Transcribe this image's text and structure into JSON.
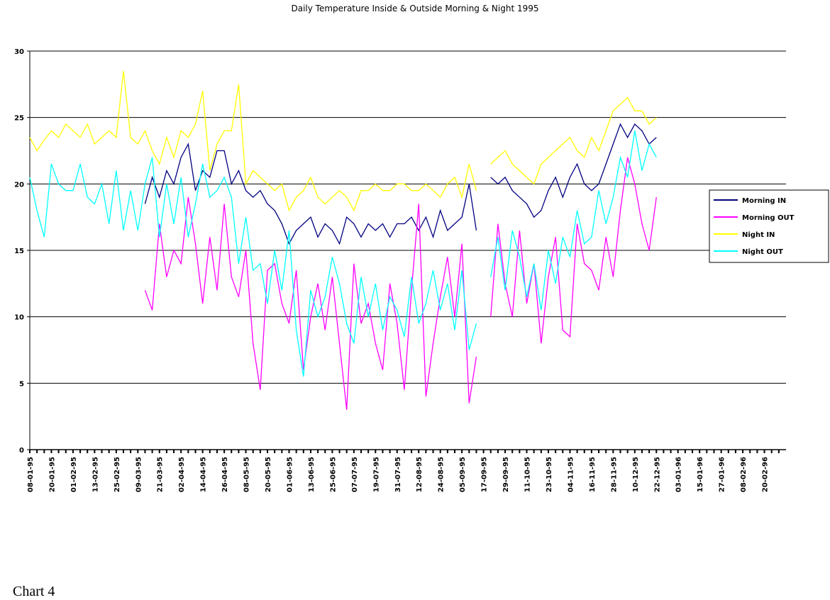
{
  "chart_data": {
    "type": "line",
    "title": "Daily Temperature  Inside & Outside   Morning & Night 1995",
    "note": "Chart 4",
    "categories": [
      "08-01-95",
      null,
      null,
      "20-01-95",
      null,
      null,
      "01-02-95",
      null,
      null,
      "13-02-95",
      null,
      null,
      "25-02-95",
      null,
      null,
      "09-03-95",
      null,
      null,
      "21-03-95",
      null,
      null,
      "02-04-95",
      null,
      null,
      "14-04-95",
      null,
      null,
      "26-04-95",
      null,
      null,
      "08-05-95",
      null,
      null,
      "20-05-95",
      null,
      null,
      "01-06-95",
      null,
      null,
      "13-06-95",
      null,
      null,
      "25-06-95",
      null,
      null,
      "07-07-95",
      null,
      null,
      "19-07-95",
      null,
      null,
      "31-07-95",
      null,
      null,
      "12-08-95",
      null,
      null,
      "24-08-95",
      null,
      null,
      "05-09-95",
      null,
      null,
      "17-09-95",
      null,
      null,
      "29-09-95",
      null,
      null,
      "11-10-95",
      null,
      null,
      "23-10-95",
      null,
      null,
      "04-11-95",
      null,
      null,
      "16-11-95",
      null,
      null,
      "28-11-95",
      null,
      null,
      "10-12-95",
      null,
      null,
      "22-12-95",
      null,
      null,
      "03-01-96",
      null,
      null,
      "15-01-96",
      null,
      null,
      "27-01-96",
      null,
      null,
      "08-02-96",
      null,
      null,
      "20-02-96",
      null,
      null
    ],
    "series": [
      {
        "name": "Morning IN",
        "color": "#000080",
        "values": [
          null,
          null,
          null,
          null,
          null,
          null,
          null,
          null,
          null,
          null,
          null,
          null,
          null,
          null,
          null,
          null,
          18.5,
          20.5,
          19,
          21,
          20,
          22,
          23,
          19.5,
          21,
          20.5,
          22.5,
          22.5,
          20,
          21,
          19.5,
          19,
          19.5,
          18.5,
          18,
          17,
          15.5,
          16.5,
          17,
          17.5,
          16,
          17,
          16.5,
          15.5,
          17.5,
          17,
          16,
          17,
          16.5,
          17,
          16,
          17,
          17,
          17.5,
          16.5,
          17.5,
          16,
          18,
          16.5,
          17,
          17.5,
          20,
          16.5,
          null,
          20.5,
          20,
          20.5,
          19.5,
          19,
          18.5,
          17.5,
          18,
          19.5,
          20.5,
          19,
          20.5,
          21.5,
          20,
          19.5,
          20,
          21.5,
          23,
          24.5,
          23.5,
          24.5,
          24,
          23,
          23.5,
          null,
          null,
          null,
          null,
          null,
          null,
          null,
          null,
          null,
          null,
          null,
          null,
          null,
          null,
          null,
          null,
          null
        ]
      },
      {
        "name": "Morning OUT",
        "color": "#ff00ff",
        "values": [
          null,
          null,
          null,
          null,
          null,
          null,
          null,
          null,
          null,
          null,
          null,
          null,
          null,
          null,
          null,
          null,
          12,
          10.5,
          17,
          13,
          15,
          14,
          19,
          15.5,
          11,
          16,
          12,
          18.5,
          13,
          11.5,
          15,
          8,
          4.5,
          13.5,
          14,
          11,
          9.5,
          13.5,
          6,
          10,
          12.5,
          9,
          13,
          8,
          3,
          14,
          9.5,
          11,
          8,
          6,
          12.5,
          9.5,
          4.5,
          12,
          18.5,
          4,
          8,
          11.5,
          14.5,
          10,
          15.5,
          3.5,
          7,
          null,
          10,
          17,
          12.5,
          10,
          16.5,
          11,
          14,
          8,
          13,
          16,
          9,
          8.5,
          17,
          14,
          13.5,
          12,
          16,
          13,
          18,
          22,
          20,
          17,
          15,
          19,
          null,
          null,
          null,
          null,
          null,
          null,
          null,
          null,
          null,
          null,
          null,
          null,
          null,
          null,
          null,
          null,
          null
        ]
      },
      {
        "name": "Night IN",
        "color": "#ffff00",
        "values": [
          23.5,
          22.5,
          23.3,
          24,
          23.5,
          24.5,
          24,
          23.5,
          24.5,
          23,
          23.5,
          24,
          23.5,
          28.5,
          23.5,
          23,
          24,
          22.5,
          21.5,
          23.5,
          22,
          24,
          23.5,
          24.5,
          27,
          21,
          23,
          24,
          24,
          27.5,
          20,
          21,
          20.5,
          20,
          19.5,
          20,
          18,
          19,
          19.5,
          20.5,
          19,
          18.5,
          19,
          19.5,
          19,
          18,
          19.5,
          19.5,
          20,
          19.5,
          19.5,
          20,
          20,
          19.5,
          19.5,
          20,
          19.5,
          19,
          20,
          20.5,
          19,
          21.5,
          19.5,
          null,
          21.5,
          22,
          22.5,
          21.5,
          21,
          20.5,
          20,
          21.5,
          22,
          22.5,
          23,
          23.5,
          22.5,
          22,
          23.5,
          22.5,
          24,
          25.5,
          26,
          26.5,
          25.5,
          25.5,
          24.5,
          25,
          null,
          null,
          null,
          null,
          null,
          null,
          null,
          null,
          null,
          null,
          null,
          null,
          null,
          null,
          null,
          null,
          null
        ]
      },
      {
        "name": "Night OUT",
        "color": "#00ffff",
        "values": [
          20.5,
          18,
          16,
          21.5,
          20,
          19.5,
          19.5,
          21.5,
          19,
          18.5,
          20,
          17,
          21,
          16.5,
          19.5,
          16.5,
          20,
          22,
          16,
          20,
          17,
          20.5,
          16,
          18.5,
          21.5,
          19,
          19.5,
          20.5,
          19,
          14,
          17.5,
          13.5,
          14,
          11,
          15,
          12,
          16.5,
          9,
          5.5,
          12,
          10,
          11.5,
          14.5,
          12.5,
          9.5,
          8,
          13,
          10,
          12.5,
          9,
          11.5,
          10.5,
          8.5,
          13,
          9.5,
          11,
          13.5,
          10.5,
          12.5,
          9,
          13.5,
          7.5,
          9.5,
          null,
          13,
          16,
          12,
          16.5,
          14.5,
          11.5,
          14,
          10.5,
          15,
          12.5,
          16,
          14.5,
          18,
          15.5,
          16,
          19.5,
          17,
          19,
          22,
          20.5,
          24,
          21,
          23,
          22,
          null,
          null,
          null,
          null,
          null,
          null,
          null,
          null,
          null,
          null,
          null,
          null,
          null,
          null,
          null,
          null,
          null
        ]
      }
    ],
    "ylim": [
      0,
      30
    ],
    "yticks": [
      0,
      5,
      10,
      15,
      20,
      25,
      30
    ],
    "grid": true,
    "legend": "right"
  }
}
